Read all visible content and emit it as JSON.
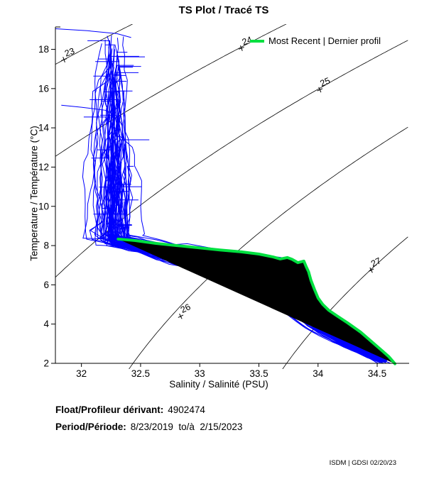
{
  "chart_data": {
    "type": "line",
    "title": "TS Plot / Tracé TS",
    "xlabel": "Salinity / Salinité (PSU)",
    "ylabel": "Temperature / Température (°C)",
    "xlim": [
      31.78,
      34.77
    ],
    "ylim": [
      2,
      19.14
    ],
    "x_ticks": [
      32,
      32.5,
      33,
      33.5,
      34,
      34.5
    ],
    "x_tick_labels": [
      "32",
      "32.5",
      "33",
      "33.5",
      "34",
      "34.5"
    ],
    "y_ticks": [
      2,
      4,
      6,
      8,
      10,
      12,
      14,
      16,
      18
    ],
    "grid": false,
    "legend": {
      "position": "top-right-inside",
      "entries": [
        {
          "label": "Most Recent | Dernier profil",
          "color": "#00E040"
        }
      ]
    },
    "colors": {
      "profiles": "#0000FF",
      "most_recent": "#00E040",
      "contours": "#000000",
      "axis": "#000000"
    },
    "density_contours": {
      "levels": [
        23,
        24,
        25,
        26,
        27
      ],
      "labels": [
        {
          "level": "23",
          "s": 31.9,
          "t": 17.85,
          "rotation": -20
        },
        {
          "level": "24",
          "s": 33.4,
          "t": 18.43,
          "rotation": -20
        },
        {
          "level": "25",
          "s": 34.06,
          "t": 16.33,
          "rotation": -23
        },
        {
          "level": "26",
          "s": 32.88,
          "t": 4.8,
          "rotation": -26
        },
        {
          "level": "27",
          "s": 34.49,
          "t": 7.15,
          "rotation": -26
        }
      ],
      "sigma_t_coeffs": {
        "a": 0.00469,
        "b": 0.0735,
        "c0": 28.14,
        "s_slope": 0.77,
        "s_ref": 35
      }
    },
    "most_recent_profile": {
      "points_st": [
        [
          32.31,
          8.33
        ],
        [
          32.45,
          8.26
        ],
        [
          32.63,
          8.11
        ],
        [
          32.81,
          8.0
        ],
        [
          32.99,
          7.89
        ],
        [
          33.17,
          7.78
        ],
        [
          33.35,
          7.68
        ],
        [
          33.5,
          7.57
        ],
        [
          33.62,
          7.42
        ],
        [
          33.68,
          7.32
        ],
        [
          33.74,
          7.39
        ],
        [
          33.78,
          7.3
        ],
        [
          33.83,
          7.13
        ],
        [
          33.88,
          7.21
        ],
        [
          33.9,
          6.92
        ],
        [
          33.92,
          6.67
        ],
        [
          33.94,
          6.23
        ],
        [
          33.97,
          5.76
        ],
        [
          34.0,
          5.33
        ],
        [
          34.04,
          5.0
        ],
        [
          34.09,
          4.71
        ],
        [
          34.16,
          4.42
        ],
        [
          34.25,
          4.06
        ],
        [
          34.36,
          3.59
        ],
        [
          34.45,
          3.12
        ],
        [
          34.54,
          2.65
        ],
        [
          34.6,
          2.33
        ],
        [
          34.65,
          1.98
        ]
      ]
    },
    "profiles_spec": {
      "count": 95,
      "seed": 1337,
      "top_t_min": 8.8,
      "top_t_max": 19.05,
      "elbow_t": 8.25,
      "elbow_s": 32.35,
      "knee_s": 33.72,
      "end_s": 34.55,
      "end_t": 2.0
    },
    "outlier_segments": [
      [
        [
          31.78,
          19.05
        ],
        [
          32.05,
          18.95
        ],
        [
          32.3,
          18.8
        ],
        [
          32.42,
          18.6
        ]
      ],
      [
        [
          31.83,
          15.15
        ],
        [
          32.0,
          15.05
        ],
        [
          32.2,
          14.9
        ],
        [
          32.32,
          14.55
        ]
      ]
    ]
  },
  "legend": {
    "label": "Most Recent | Dernier profil"
  },
  "footer": {
    "float_label": "Float/Profileur dérivant:",
    "float_value": "4902474",
    "period_label": "Period/Période:",
    "period_value": "8/23/2019  to/à  2/15/2023",
    "credit": "ISDM | GDSI 02/20/23"
  }
}
